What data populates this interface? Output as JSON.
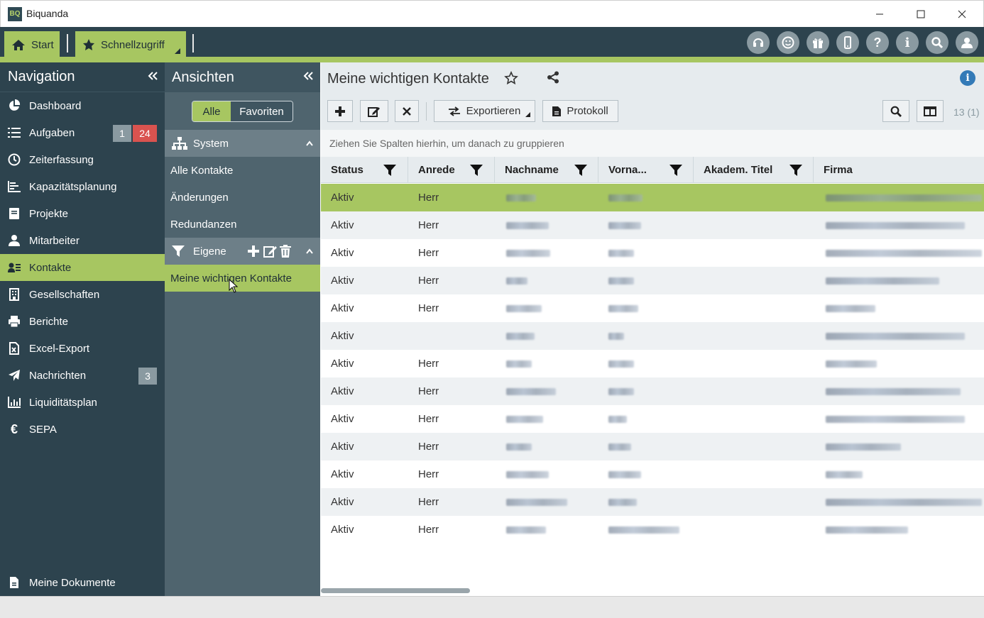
{
  "window": {
    "title": "Biquanda",
    "icon_text": "BQ"
  },
  "topbar": {
    "tabs": [
      {
        "label": "Start",
        "icon": "home-icon"
      },
      {
        "label": "Schnellzugriff",
        "icon": "star-icon"
      }
    ],
    "icons": [
      "support-icon",
      "smiley-icon",
      "gift-icon",
      "mobile-icon",
      "help-icon",
      "info-icon",
      "search-icon",
      "user-icon"
    ]
  },
  "nav": {
    "title": "Navigation",
    "items": [
      {
        "label": "Dashboard",
        "icon": "pie-chart-icon"
      },
      {
        "label": "Aufgaben",
        "icon": "tasks-icon",
        "badges": [
          "1",
          "24"
        ]
      },
      {
        "label": "Zeiterfassung",
        "icon": "clock-icon"
      },
      {
        "label": "Kapazitätsplanung",
        "icon": "capacity-icon"
      },
      {
        "label": "Projekte",
        "icon": "book-icon"
      },
      {
        "label": "Mitarbeiter",
        "icon": "user-icon"
      },
      {
        "label": "Kontakte",
        "icon": "contacts-icon"
      },
      {
        "label": "Gesellschaften",
        "icon": "building-icon"
      },
      {
        "label": "Berichte",
        "icon": "print-icon"
      },
      {
        "label": "Excel-Export",
        "icon": "excel-icon"
      },
      {
        "label": "Nachrichten",
        "icon": "paper-plane-icon",
        "badges": [
          "3"
        ]
      },
      {
        "label": "Liquiditätsplan",
        "icon": "bar-chart-icon"
      },
      {
        "label": "SEPA",
        "icon": "euro-icon"
      }
    ],
    "bottom": {
      "label": "Meine Dokumente",
      "icon": "document-icon"
    }
  },
  "views": {
    "title": "Ansichten",
    "toggle": {
      "all": "Alle",
      "favorites": "Favoriten"
    },
    "system": {
      "label": "System",
      "items": [
        "Alle Kontakte",
        "Änderungen",
        "Redundanzen"
      ]
    },
    "own": {
      "label": "Eigene",
      "items": [
        "Meine wichtigen Kontakte"
      ]
    }
  },
  "main": {
    "title": "Meine wichtigen Kontakte",
    "toolbar": {
      "export": "Exportieren",
      "protocol": "Protokoll",
      "count": "13 (1)"
    },
    "group_hint": "Ziehen Sie Spalten hierhin, um danach zu gruppieren",
    "columns": [
      "Status",
      "Anrede",
      "Nachname",
      "Vorna...",
      "Akadem. Titel",
      "Firma"
    ],
    "rows": [
      {
        "status": "Aktiv",
        "anrede": "Herr"
      },
      {
        "status": "Aktiv",
        "anrede": "Herr"
      },
      {
        "status": "Aktiv",
        "anrede": "Herr"
      },
      {
        "status": "Aktiv",
        "anrede": "Herr"
      },
      {
        "status": "Aktiv",
        "anrede": "Herr"
      },
      {
        "status": "Aktiv",
        "anrede": ""
      },
      {
        "status": "Aktiv",
        "anrede": "Herr"
      },
      {
        "status": "Aktiv",
        "anrede": "Herr"
      },
      {
        "status": "Aktiv",
        "anrede": "Herr"
      },
      {
        "status": "Aktiv",
        "anrede": "Herr"
      },
      {
        "status": "Aktiv",
        "anrede": "Herr"
      },
      {
        "status": "Aktiv",
        "anrede": "Herr"
      },
      {
        "status": "Aktiv",
        "anrede": "Herr"
      }
    ]
  },
  "colors": {
    "accent": "#a7c661",
    "dark": "#2d434e",
    "panel": "#4f646e"
  }
}
